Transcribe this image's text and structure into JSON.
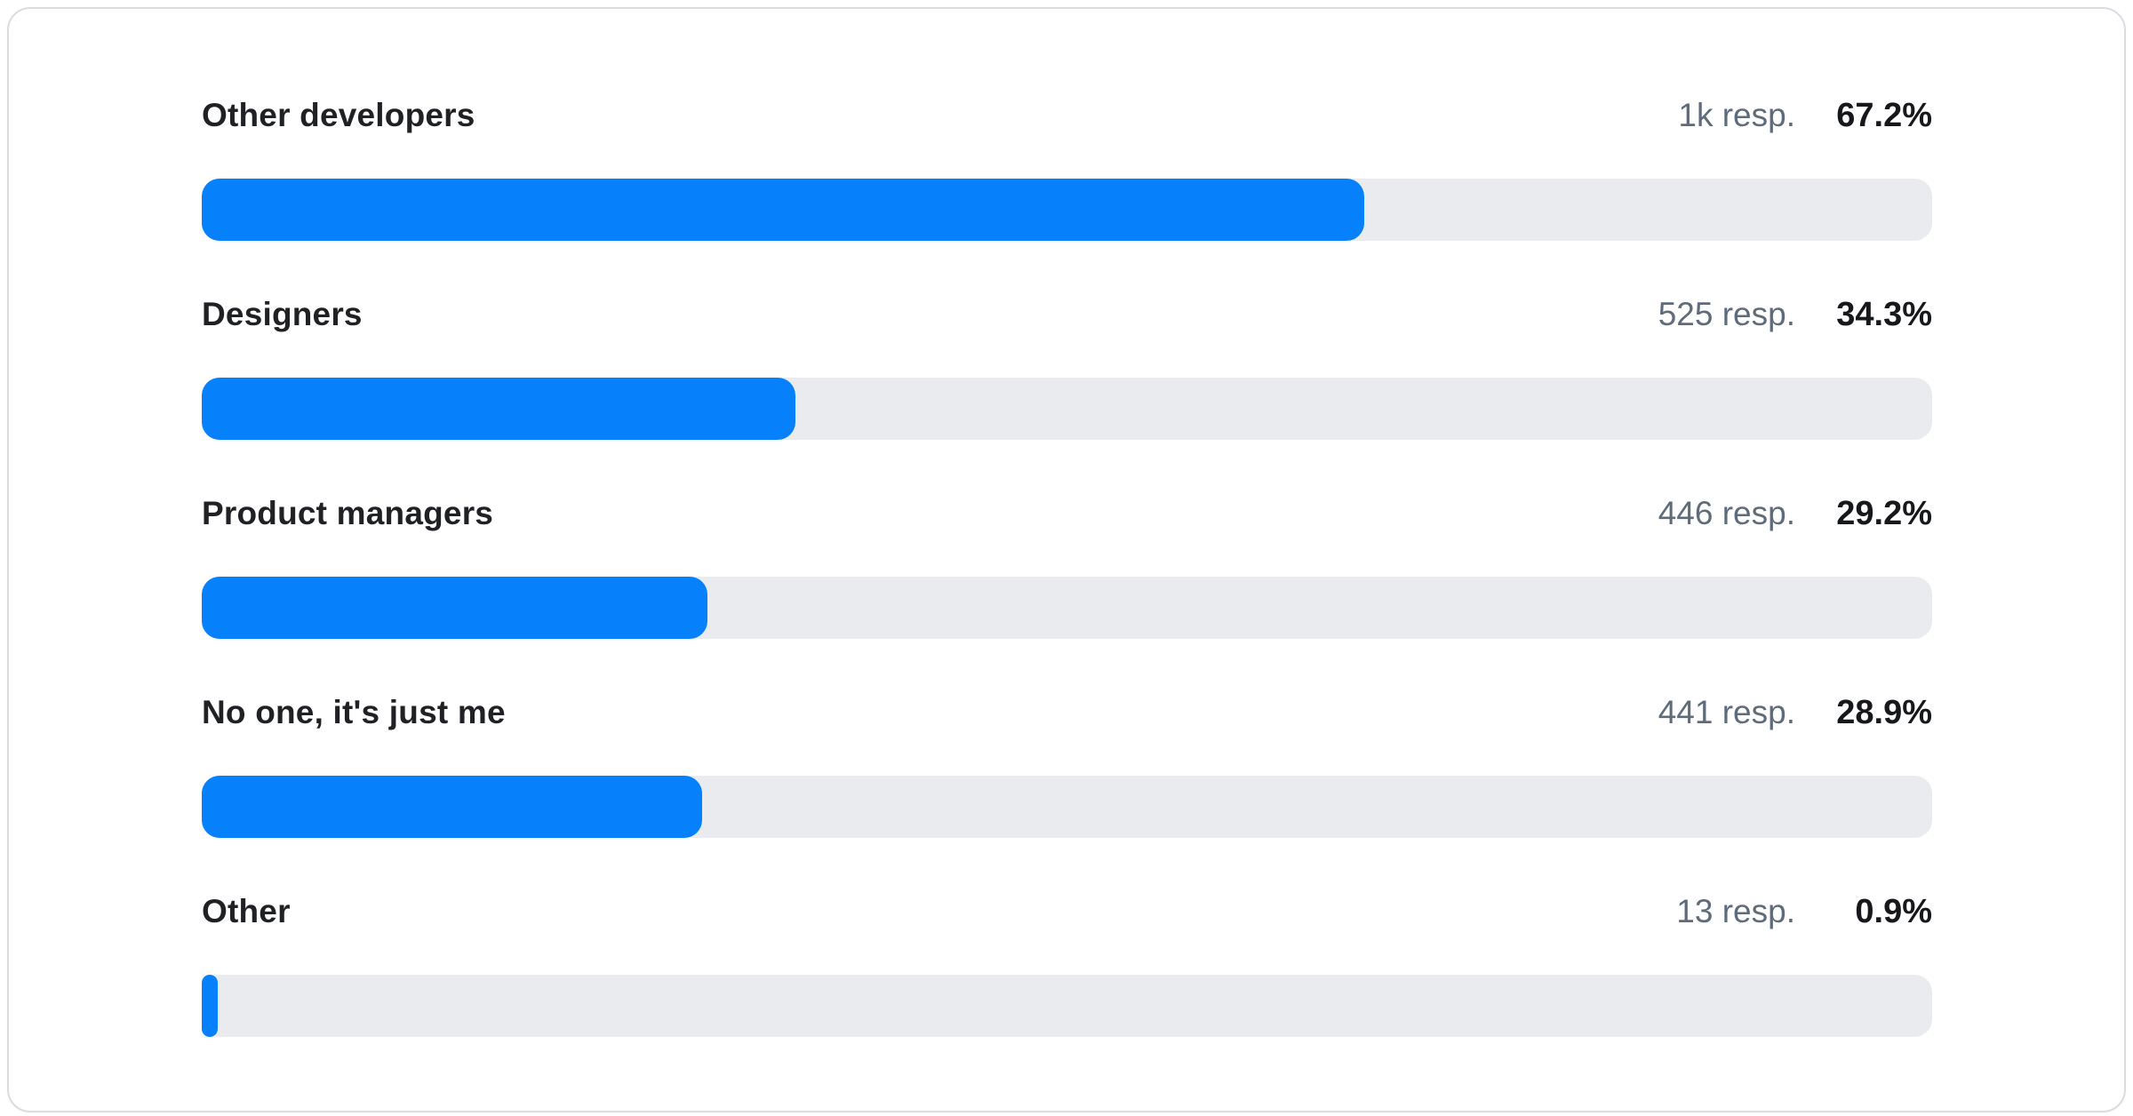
{
  "colors": {
    "bar_fill": "#0781fb",
    "bar_track": "#e9ebee",
    "label_text": "#1f2125",
    "resp_text": "#5f6b7a",
    "percent_text": "#16181c",
    "card_border": "#d9dde2",
    "card_background": "#ffffff"
  },
  "chart_data": {
    "type": "bar",
    "orientation": "horizontal",
    "title": "",
    "xlabel": "",
    "ylabel": "",
    "xlim": [
      0,
      100
    ],
    "grid": false,
    "legend": false,
    "categories": [
      "Other developers",
      "Designers",
      "Product managers",
      "No one, it's just me",
      "Other"
    ],
    "values": [
      67.2,
      34.3,
      29.2,
      28.9,
      0.9
    ],
    "value_labels": [
      "67.2%",
      "34.3%",
      "29.2%",
      "28.9%",
      "0.9%"
    ],
    "response_counts": [
      "1k resp.",
      "525 resp.",
      "446 resp.",
      "441 resp.",
      "13 resp."
    ]
  },
  "rows": [
    {
      "label": "Other developers",
      "resp": "1k resp.",
      "pct_label": "67.2%",
      "pct": 67.2
    },
    {
      "label": "Designers",
      "resp": "525 resp.",
      "pct_label": "34.3%",
      "pct": 34.3
    },
    {
      "label": "Product managers",
      "resp": "446 resp.",
      "pct_label": "29.2%",
      "pct": 29.2
    },
    {
      "label": "No one, it's just me",
      "resp": "441 resp.",
      "pct_label": "28.9%",
      "pct": 28.9
    },
    {
      "label": "Other",
      "resp": "13 resp.",
      "pct_label": "0.9%",
      "pct": 0.9
    }
  ]
}
